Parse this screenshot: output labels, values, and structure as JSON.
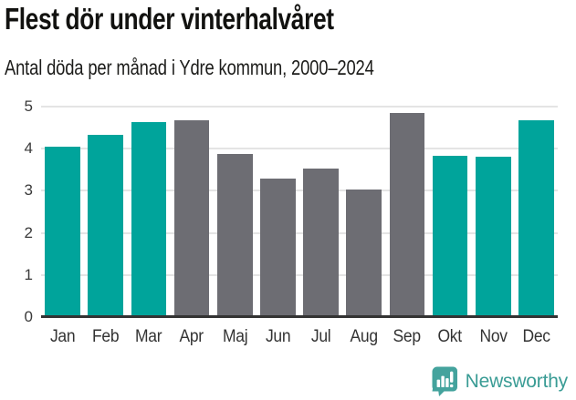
{
  "chart_data": {
    "type": "bar",
    "title": "Flest dör under vinterhalvåret",
    "subtitle": "Antal döda per månad i Ydre kommun, 2000–2024",
    "categories": [
      "Jan",
      "Feb",
      "Mar",
      "Apr",
      "Maj",
      "Jun",
      "Jul",
      "Aug",
      "Sep",
      "Okt",
      "Nov",
      "Dec"
    ],
    "values": [
      4.04,
      4.32,
      4.64,
      4.68,
      3.88,
      3.28,
      3.52,
      3.04,
      4.84,
      3.84,
      3.8,
      4.68
    ],
    "highlighted": [
      true,
      true,
      true,
      false,
      false,
      false,
      false,
      false,
      false,
      true,
      true,
      true
    ],
    "xlabel": "",
    "ylabel": "",
    "ylim": [
      0,
      5
    ],
    "yticks": [
      0,
      1,
      2,
      3,
      4,
      5
    ],
    "grid": true,
    "legend": "none",
    "colors": {
      "highlight": "#00a49b",
      "default": "#6d6d73",
      "gridline": "#e4e4e4",
      "axis_line": "#333333",
      "tick_text": "#333333"
    }
  },
  "branding": {
    "logo_text": "Newsworthy",
    "logo_text_color": "#3a9c95",
    "logo_icon": "newsworthy-speech-bubble-bar-chart-icon",
    "logo_icon_color": "#44a39d"
  }
}
